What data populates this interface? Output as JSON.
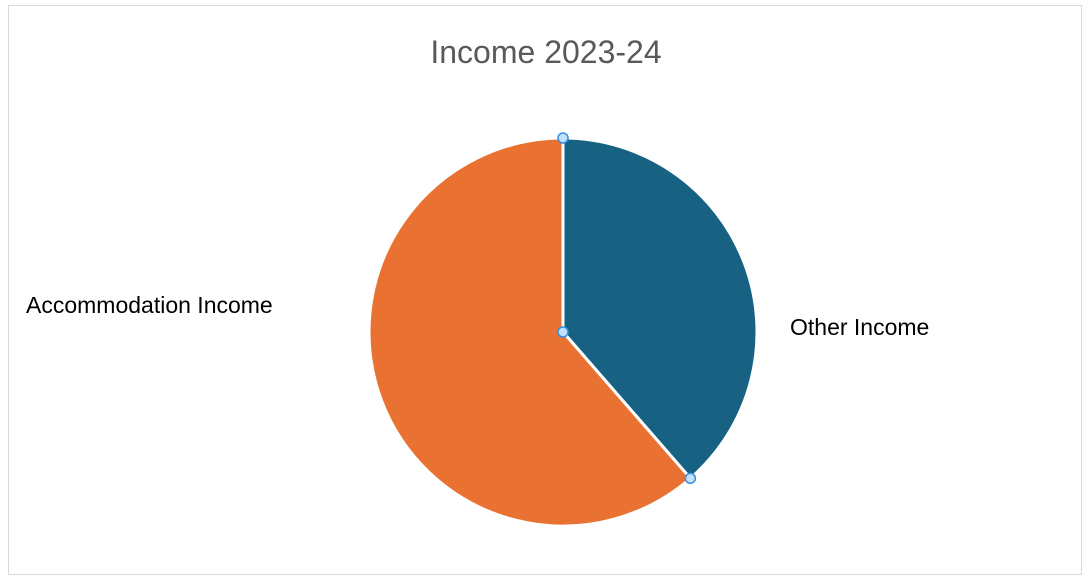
{
  "chart_data": {
    "type": "pie",
    "title": "Income 2023-24",
    "slices": [
      {
        "name": "Other Income",
        "percent": 38.6,
        "color": "#176183"
      },
      {
        "name": "Accommodation Income",
        "percent": 61.4,
        "color": "#e97132"
      }
    ],
    "selection_handles": true
  }
}
